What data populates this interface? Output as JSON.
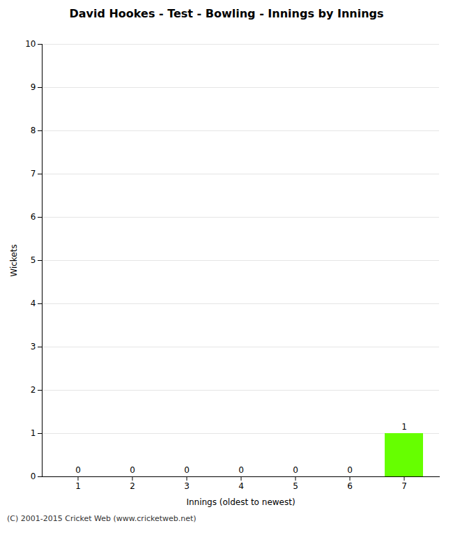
{
  "chart_data": {
    "type": "bar",
    "title": "David Hookes - Test - Bowling - Innings by Innings",
    "xlabel": "Innings (oldest to newest)",
    "ylabel": "Wickets",
    "categories": [
      "1",
      "2",
      "3",
      "4",
      "5",
      "6",
      "7"
    ],
    "values": [
      0,
      0,
      0,
      0,
      0,
      0,
      1
    ],
    "color": "#66ff00",
    "ylim": [
      0,
      10
    ],
    "yticks": [
      0,
      1,
      2,
      3,
      4,
      5,
      6,
      7,
      8,
      9,
      10
    ],
    "grid": true,
    "data_labels": true,
    "annotations": [
      "(C) 2001-2015 Cricket Web (www.cricketweb.net)"
    ]
  }
}
